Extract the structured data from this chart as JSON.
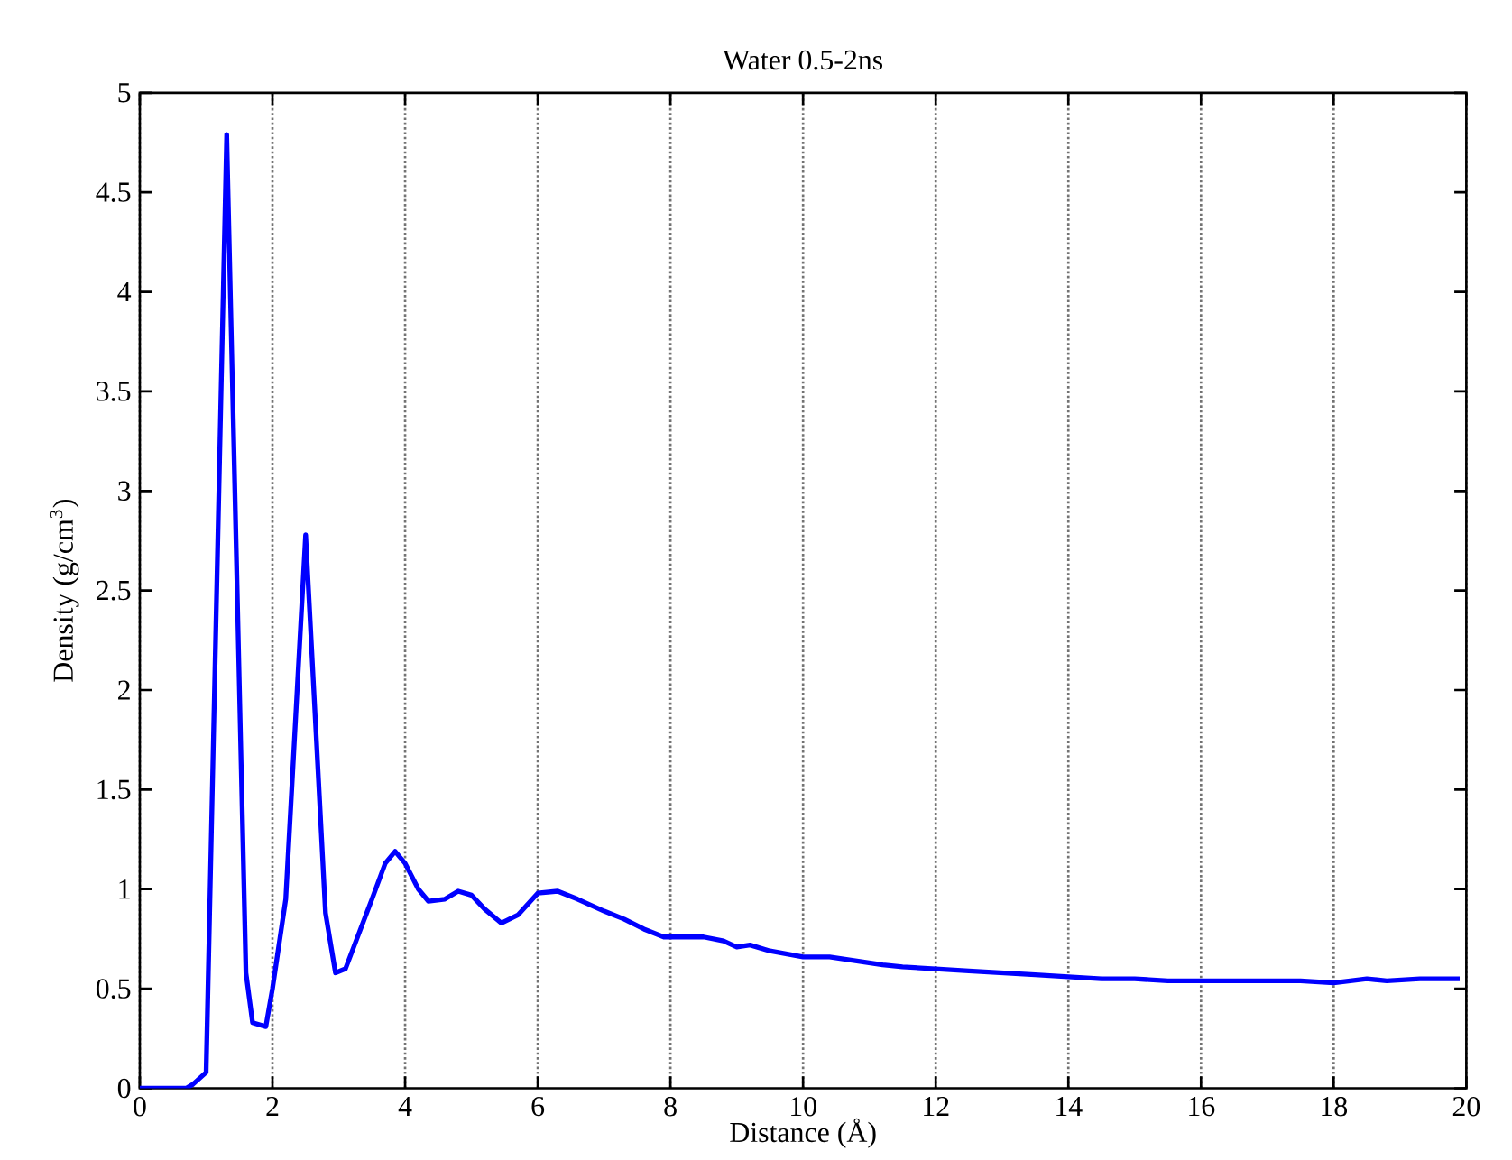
{
  "chart_data": {
    "type": "line",
    "title": "Water 0.5-2ns",
    "xlabel": "Distance (Å)",
    "ylabel": "Density (g/cm$^{3}$)",
    "xlim": [
      0,
      20
    ],
    "ylim": [
      0,
      5
    ],
    "xticks": [
      0,
      2,
      4,
      6,
      8,
      10,
      12,
      14,
      16,
      18,
      20
    ],
    "yticks": [
      0,
      {
        "value": 0.5,
        "label": "0.5"
      },
      1,
      {
        "value": 1.5,
        "label": "1.5"
      },
      2,
      {
        "value": 2.5,
        "label": "2.5"
      },
      3,
      {
        "value": 3.5,
        "label": "3.5"
      },
      4,
      {
        "value": 4.5,
        "label": "4.5"
      },
      5
    ],
    "grid": "x",
    "marker": "none",
    "line_style": "solid",
    "series": [
      {
        "color": "#0000ff",
        "x": [
          0,
          0.7,
          0.8,
          1.0,
          1.31,
          1.6,
          1.7,
          1.9,
          2.0,
          2.2,
          2.5,
          2.8,
          2.95,
          3.1,
          3.5,
          3.7,
          3.85,
          4.0,
          4.2,
          4.35,
          4.6,
          4.8,
          5.0,
          5.2,
          5.45,
          5.7,
          6.0,
          6.3,
          6.6,
          7.0,
          7.3,
          7.6,
          7.9,
          8.0,
          8.5,
          8.8,
          9.0,
          9.2,
          9.5,
          10.0,
          10.4,
          10.8,
          11.2,
          11.5,
          12.0,
          12.5,
          13.0,
          13.5,
          14.0,
          14.5,
          15.0,
          15.5,
          16.0,
          16.5,
          17.0,
          17.5,
          18.0,
          18.5,
          18.8,
          19.3,
          19.9
        ],
        "values": [
          0,
          0,
          0.02,
          0.08,
          4.79,
          0.58,
          0.33,
          0.31,
          0.5,
          0.95,
          2.78,
          0.88,
          0.58,
          0.6,
          0.95,
          1.13,
          1.19,
          1.13,
          1.0,
          0.94,
          0.95,
          0.99,
          0.97,
          0.9,
          0.83,
          0.87,
          0.98,
          0.99,
          0.95,
          0.89,
          0.85,
          0.8,
          0.76,
          0.76,
          0.76,
          0.74,
          0.71,
          0.72,
          0.69,
          0.66,
          0.66,
          0.64,
          0.62,
          0.61,
          0.6,
          0.59,
          0.58,
          0.57,
          0.56,
          0.55,
          0.55,
          0.54,
          0.54,
          0.54,
          0.54,
          0.54,
          0.53,
          0.55,
          0.54,
          0.55,
          0.55
        ]
      }
    ]
  }
}
